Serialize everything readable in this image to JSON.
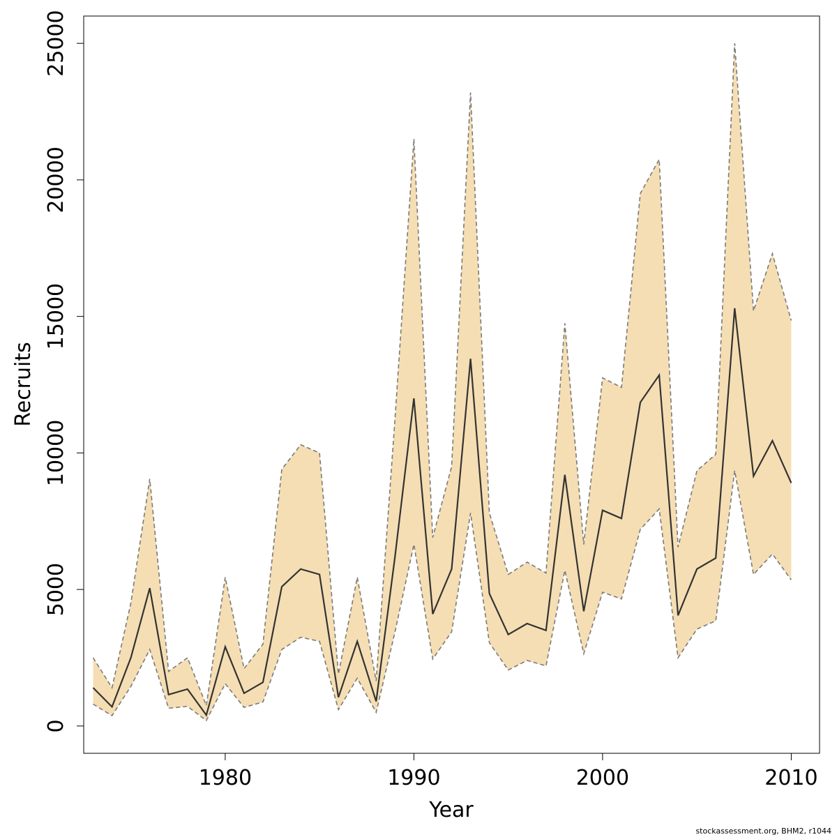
{
  "footer": "stockassessment.org, BHM2, r1044",
  "colors": {
    "band_fill": "#f5deb3",
    "band_edge": "#7a7a7a",
    "line": "#333333",
    "axis": "#000000"
  },
  "chart_data": {
    "type": "area",
    "title": "",
    "xlabel": "Year",
    "ylabel": "Recruits",
    "xlim": [
      1972.5,
      2011.5
    ],
    "ylim": [
      -1000,
      26000
    ],
    "xticks": [
      1980,
      1990,
      2000,
      2010
    ],
    "yticks": [
      0,
      5000,
      10000,
      15000,
      20000,
      25000
    ],
    "grid": false,
    "x": [
      1973,
      1974,
      1975,
      1976,
      1977,
      1978,
      1979,
      1980,
      1981,
      1982,
      1983,
      1984,
      1985,
      1986,
      1987,
      1988,
      1989,
      1990,
      1991,
      1992,
      1993,
      1994,
      1995,
      1996,
      1997,
      1998,
      1999,
      2000,
      2001,
      2002,
      2003,
      2004,
      2005,
      2006,
      2007,
      2008,
      2009,
      2010
    ],
    "series": [
      {
        "role": "estimate",
        "values": [
          1400,
          700,
          2500,
          5050,
          1150,
          1350,
          400,
          2900,
          1200,
          1600,
          5100,
          5750,
          5550,
          1050,
          3100,
          900,
          6200,
          12000,
          4100,
          5750,
          13450,
          4850,
          3350,
          3750,
          3500,
          9200,
          4200,
          7900,
          7600,
          11850,
          12850,
          4050,
          5750,
          6150,
          15300,
          9150,
          10450,
          8900
        ]
      },
      {
        "role": "upper",
        "values": [
          2500,
          1400,
          4500,
          9050,
          2000,
          2500,
          750,
          5450,
          2100,
          3000,
          9400,
          10300,
          10000,
          1900,
          5450,
          1650,
          11250,
          21500,
          6900,
          9500,
          23200,
          7800,
          5550,
          6000,
          5600,
          14750,
          6650,
          12750,
          12400,
          19500,
          20750,
          6550,
          9350,
          9950,
          25000,
          15200,
          17300,
          14850
        ]
      },
      {
        "role": "lower",
        "values": [
          800,
          380,
          1450,
          2800,
          650,
          720,
          200,
          1550,
          680,
          880,
          2800,
          3250,
          3100,
          600,
          1750,
          500,
          3450,
          6650,
          2450,
          3450,
          7800,
          3050,
          2050,
          2400,
          2200,
          5700,
          2650,
          4900,
          4650,
          7200,
          7950,
          2500,
          3550,
          3850,
          9350,
          5550,
          6300,
          5350
        ]
      }
    ]
  }
}
